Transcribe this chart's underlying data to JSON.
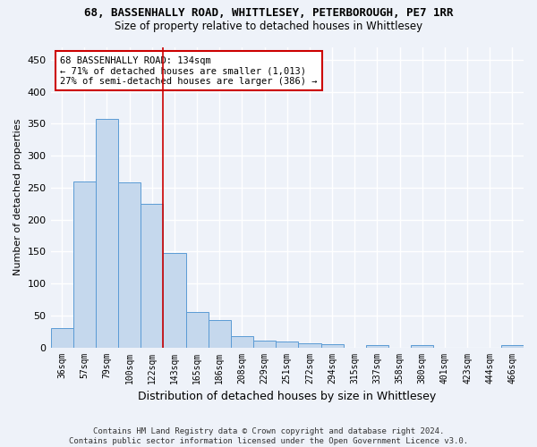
{
  "title_main": "68, BASSENHALLY ROAD, WHITTLESEY, PETERBOROUGH, PE7 1RR",
  "title_sub": "Size of property relative to detached houses in Whittlesey",
  "xlabel": "Distribution of detached houses by size in Whittlesey",
  "ylabel": "Number of detached properties",
  "categories": [
    "36sqm",
    "57sqm",
    "79sqm",
    "100sqm",
    "122sqm",
    "143sqm",
    "165sqm",
    "186sqm",
    "208sqm",
    "229sqm",
    "251sqm",
    "272sqm",
    "294sqm",
    "315sqm",
    "337sqm",
    "358sqm",
    "380sqm",
    "401sqm",
    "423sqm",
    "444sqm",
    "466sqm"
  ],
  "values": [
    30,
    260,
    357,
    258,
    224,
    147,
    56,
    43,
    17,
    11,
    9,
    7,
    5,
    0,
    4,
    0,
    3,
    0,
    0,
    0,
    3
  ],
  "bar_color": "#c5d8ed",
  "bar_edge_color": "#5b9bd5",
  "vline_color": "#cc0000",
  "annotation_line1": "68 BASSENHALLY ROAD: 134sqm",
  "annotation_line2": "← 71% of detached houses are smaller (1,013)",
  "annotation_line3": "27% of semi-detached houses are larger (386) →",
  "annotation_box_color": "white",
  "annotation_box_edge": "#cc0000",
  "ylim": [
    0,
    470
  ],
  "yticks": [
    0,
    50,
    100,
    150,
    200,
    250,
    300,
    350,
    400,
    450
  ],
  "footer_line1": "Contains HM Land Registry data © Crown copyright and database right 2024.",
  "footer_line2": "Contains public sector information licensed under the Open Government Licence v3.0.",
  "background_color": "#eef2f9",
  "grid_color": "#ffffff"
}
